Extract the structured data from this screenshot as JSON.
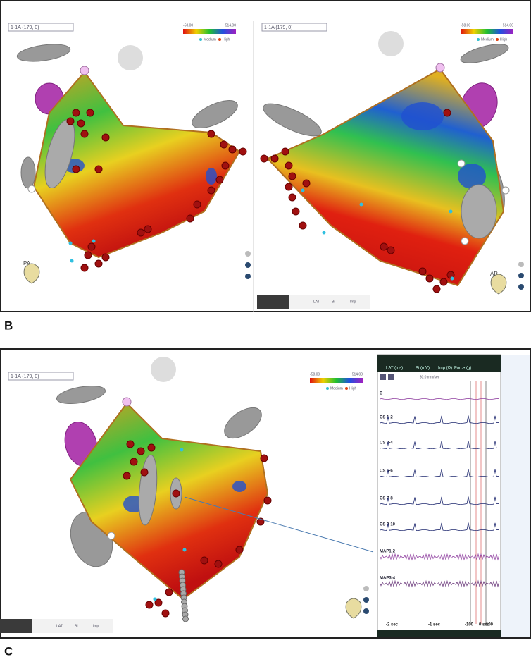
{
  "panel_b": {
    "label": "B",
    "left_view": {
      "dropdown": "1-1A (179, 0)",
      "scale_min": "-58.00",
      "scale_max": "514.00",
      "legend": [
        "Medium",
        "High"
      ],
      "orientation": "PA"
    },
    "right_view": {
      "dropdown": "1-1A (179, 0)",
      "scale_min": "-58.00",
      "scale_max": "514.00",
      "legend": [
        "Medium",
        "High"
      ],
      "orientation": "AP",
      "tabs": [
        "LAT",
        "Bi",
        "Imp"
      ]
    }
  },
  "panel_c": {
    "label": "C",
    "view": {
      "dropdown": "1-1A (179, 0)",
      "scale_min": "-58.00",
      "scale_max": "514.00",
      "legend": [
        "Medium",
        "High"
      ],
      "tabs": [
        "LAT",
        "Bi",
        "Imp"
      ]
    },
    "ecg": {
      "header": [
        "LAT (ms)",
        "Bi (mV)",
        "Imp (Ω)",
        "Force (g)"
      ],
      "speed": "50.0 mm/sec",
      "channels": [
        "B",
        "CS 1-2",
        "CS 3-4",
        "CS 5-6",
        "CS 7-8",
        "CS 9-10",
        "MAP1-2",
        "MAP3-4"
      ],
      "time_axis": [
        "-2 sec",
        "-1 sec",
        "-100",
        "0 sec",
        "100"
      ]
    }
  }
}
